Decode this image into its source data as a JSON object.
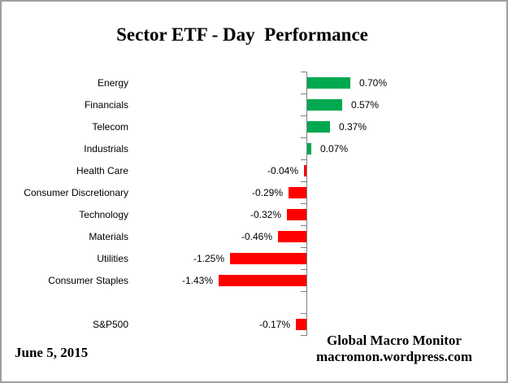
{
  "title": "Sector ETF - Day  Performance",
  "footer": {
    "date": "June 5, 2015",
    "credit_line1": "Global Macro Monitor",
    "credit_line2": "macromon.wordpress.com"
  },
  "colors": {
    "positive": "#00A850",
    "negative": "#FF0000",
    "axis": "#808080",
    "frame_border": "#9E9E9E"
  },
  "chart_data": {
    "type": "bar",
    "orientation": "horizontal",
    "title": "Sector ETF - Day  Performance",
    "unit": "percent",
    "categories": [
      "Energy",
      "Financials",
      "Telecom",
      "Industrials",
      "Health Care",
      "Consumer Discretionary",
      "Technology",
      "Materials",
      "Utilities",
      "Consumer Staples"
    ],
    "values": [
      0.7,
      0.57,
      0.37,
      0.07,
      -0.04,
      -0.29,
      -0.32,
      -0.46,
      -1.25,
      -1.43
    ],
    "value_labels": [
      "0.70%",
      "0.57%",
      "0.37%",
      "0.07%",
      "-0.04%",
      "-0.29%",
      "-0.32%",
      "-0.46%",
      "-1.25%",
      "-1.43%"
    ],
    "benchmark": {
      "category": "S&P500",
      "value": -0.17,
      "value_label": "-0.17%"
    },
    "xlim": [
      -1.6,
      1.0
    ],
    "grid": false,
    "legend": false,
    "bar_colors": {
      "positive": "#00A850",
      "negative": "#FF0000"
    }
  }
}
